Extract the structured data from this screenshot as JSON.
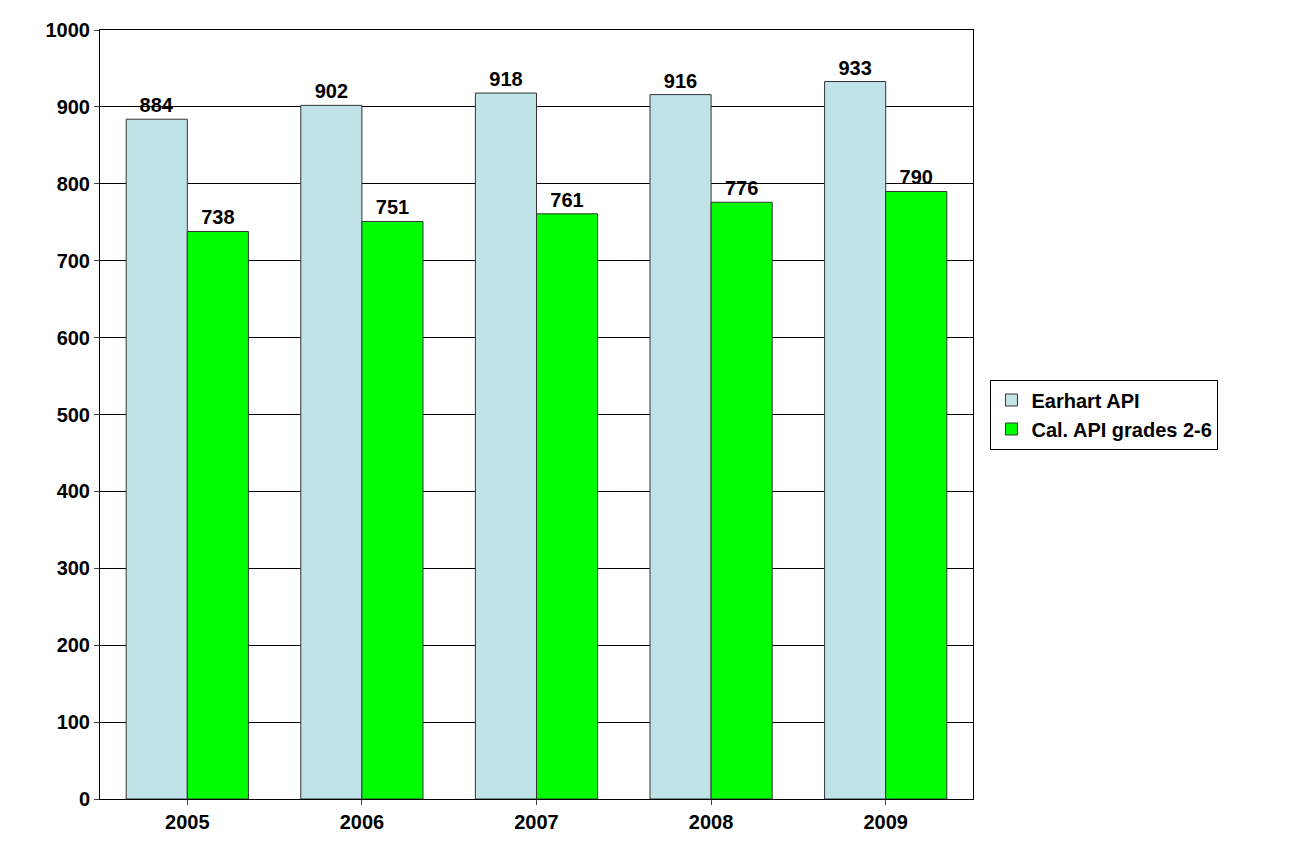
{
  "chart_data": {
    "type": "bar",
    "categories": [
      "2005",
      "2006",
      "2007",
      "2008",
      "2009"
    ],
    "series": [
      {
        "name": "Earhart API",
        "color": "#c0e3e8",
        "values": [
          884,
          902,
          918,
          916,
          933
        ]
      },
      {
        "name": "Cal. API grades 2-6",
        "color": "#00ff00",
        "values": [
          738,
          751,
          761,
          776,
          790
        ]
      }
    ],
    "ylim": [
      0,
      1000
    ],
    "yticks": [
      0,
      100,
      200,
      300,
      400,
      500,
      600,
      700,
      800,
      900,
      1000
    ],
    "grid": true,
    "legend": "right",
    "data_labels": true
  }
}
